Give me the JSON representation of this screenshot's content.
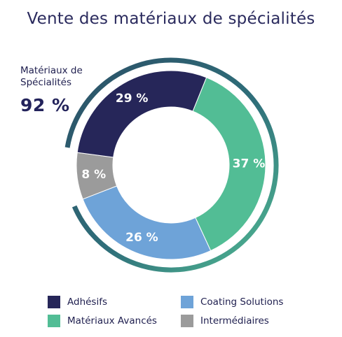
{
  "chart_data": {
    "type": "pie",
    "title": "Vente des matériaux de spécialités",
    "categories": [
      "Matériaux Avancés",
      "Coating Solutions",
      "Intermédiaires",
      "Adhésifs"
    ],
    "values": [
      37,
      26,
      8,
      29
    ],
    "value_labels": [
      "37 %",
      "26 %",
      "8 %",
      "29 %"
    ],
    "colors": [
      "#52bd95",
      "#6ea3d8",
      "#9b9b9b",
      "#262659"
    ],
    "legend": {
      "placement": "bottom",
      "items": [
        {
          "label": "Adhésifs",
          "color": "#262659"
        },
        {
          "label": "Coating Solutions",
          "color": "#6ea3d8"
        },
        {
          "label": "Matériaux Avancés",
          "color": "#52bd95"
        },
        {
          "label": "Intermédiaires",
          "color": "#9b9b9b"
        }
      ]
    },
    "callout": {
      "label": "Matériaux de Spécialités",
      "value_label": "92 %",
      "value": 92,
      "gradient_colors": [
        "#52bd95",
        "#2f6f7a",
        "#2b4f66"
      ]
    }
  }
}
